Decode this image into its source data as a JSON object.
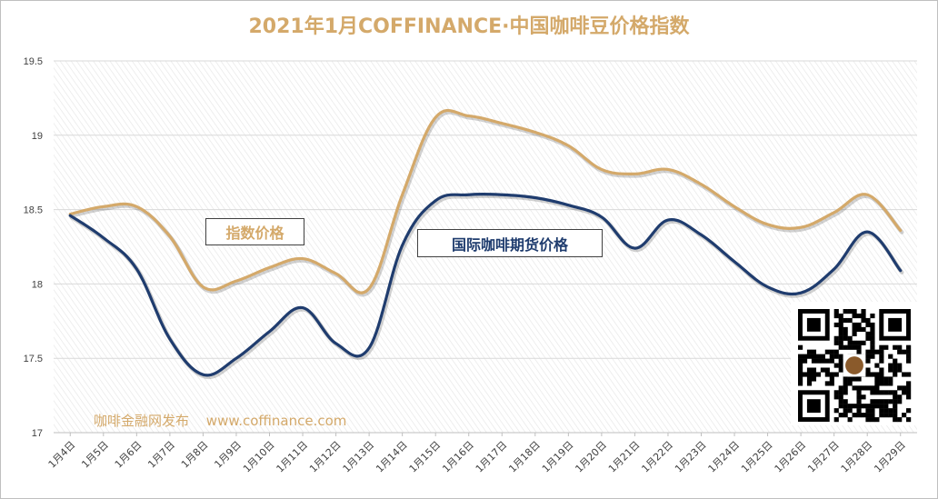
{
  "title": "2021年1月COFFINANCE·中国咖啡豆价格指数",
  "labels": {
    "index_series": "指数价格",
    "intl_series": "国际咖啡期货价格"
  },
  "watermark": {
    "publisher": "咖啡金融网发布",
    "url": "www.coffinance.com"
  },
  "qr_code": "qr-code-icon",
  "colors": {
    "index_line": "#d4a96a",
    "intl_line": "#1f3c6e",
    "title": "#d4a96a"
  },
  "chart_data": {
    "type": "line",
    "title": "2021年1月COFFINANCE·中国咖啡豆价格指数",
    "xlabel": "",
    "ylabel": "",
    "ylim": [
      17,
      19.5
    ],
    "yticks": [
      "17",
      "17.5",
      "18",
      "18.5",
      "19",
      "19.5"
    ],
    "grid": true,
    "categories": [
      "1月4日",
      "1月5日",
      "1月6日",
      "1月7日",
      "1月8日",
      "1月9日",
      "1月10日",
      "1月11日",
      "1月12日",
      "1月13日",
      "1月14日",
      "1月15日",
      "1月16日",
      "1月17日",
      "1月18日",
      "1月19日",
      "1月20日",
      "1月21日",
      "1月22日",
      "1月23日",
      "1月24日",
      "1月25日",
      "1月26日",
      "1月27日",
      "1月28日",
      "1月29日"
    ],
    "series": [
      {
        "name": "指数价格",
        "values": [
          18.47,
          18.52,
          18.52,
          18.32,
          17.98,
          18.02,
          18.11,
          18.17,
          18.07,
          17.97,
          18.6,
          19.12,
          19.13,
          19.08,
          19.02,
          18.93,
          18.77,
          18.74,
          18.77,
          18.67,
          18.52,
          18.4,
          18.38,
          18.48,
          18.6,
          18.36
        ]
      },
      {
        "name": "国际咖啡期货价格",
        "values": [
          18.46,
          18.31,
          18.1,
          17.63,
          17.39,
          17.5,
          17.68,
          17.84,
          17.6,
          17.57,
          18.26,
          18.56,
          18.6,
          18.6,
          18.58,
          18.53,
          18.45,
          18.24,
          18.43,
          18.33,
          18.15,
          17.98,
          17.94,
          18.1,
          18.35,
          18.09
        ]
      }
    ]
  }
}
